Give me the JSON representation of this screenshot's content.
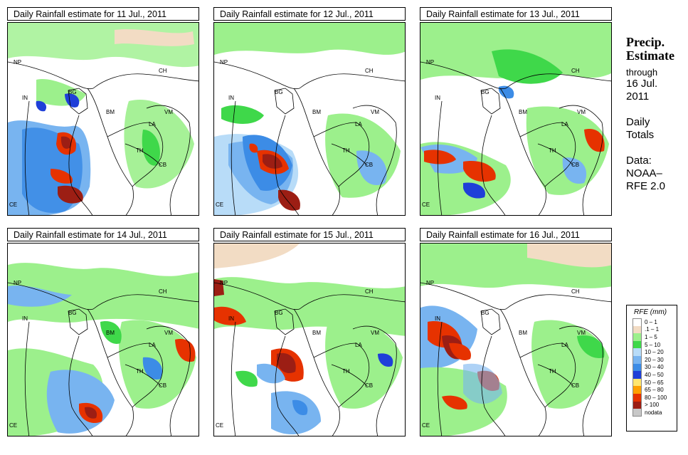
{
  "panels": [
    {
      "title": "Daily Rainfall estimate for  11 Jul., 2011"
    },
    {
      "title": "Daily Rainfall estimate for  12 Jul., 2011"
    },
    {
      "title": "Daily Rainfall estimate for  13 Jul., 2011"
    },
    {
      "title": "Daily Rainfall estimate for  14 Jul., 2011"
    },
    {
      "title": "Daily Rainfall estimate for  15 Jul., 2011"
    },
    {
      "title": "Daily Rainfall estimate for  16 Jul., 2011"
    }
  ],
  "map_labels": {
    "np": "NP",
    "ch": "CH",
    "in": "IN",
    "bg": "BG",
    "bm": "BM",
    "vm": "VM",
    "la": "LA",
    "th": "TH",
    "cb": "CB",
    "ce": "CE"
  },
  "side": {
    "title_line1": "Precip.",
    "title_line2": "Estimate",
    "through": "through",
    "date_line1": "16 Jul.",
    "date_line2": "2011",
    "daily_line1": "Daily",
    "daily_line2": "Totals",
    "data_line1": "Data:",
    "data_line2": "NOAA–",
    "data_line3": "RFE 2.0"
  },
  "legend": {
    "title": "RFE (mm)",
    "entries": [
      {
        "label": "0 – 1",
        "color": "#ffffff"
      },
      {
        "label": ".1 – 1",
        "color": "#f2dcc4"
      },
      {
        "label": "1 – 5",
        "color": "#9cf08c"
      },
      {
        "label": "5 – 10",
        "color": "#3fd84a"
      },
      {
        "label": "10 – 20",
        "color": "#b8dcf8"
      },
      {
        "label": "20 – 30",
        "color": "#78b4f0"
      },
      {
        "label": "30 – 40",
        "color": "#3c8ce6"
      },
      {
        "label": "40 – 50",
        "color": "#1f3fd8"
      },
      {
        "label": "50 – 65",
        "color": "#ffe66e"
      },
      {
        "label": "65 – 80",
        "color": "#ffa000"
      },
      {
        "label": "80 – 100",
        "color": "#e63200"
      },
      {
        "label": "> 100",
        "color": "#9c1e14"
      },
      {
        "label": "nodata",
        "color": "#c8c8c8"
      }
    ]
  }
}
